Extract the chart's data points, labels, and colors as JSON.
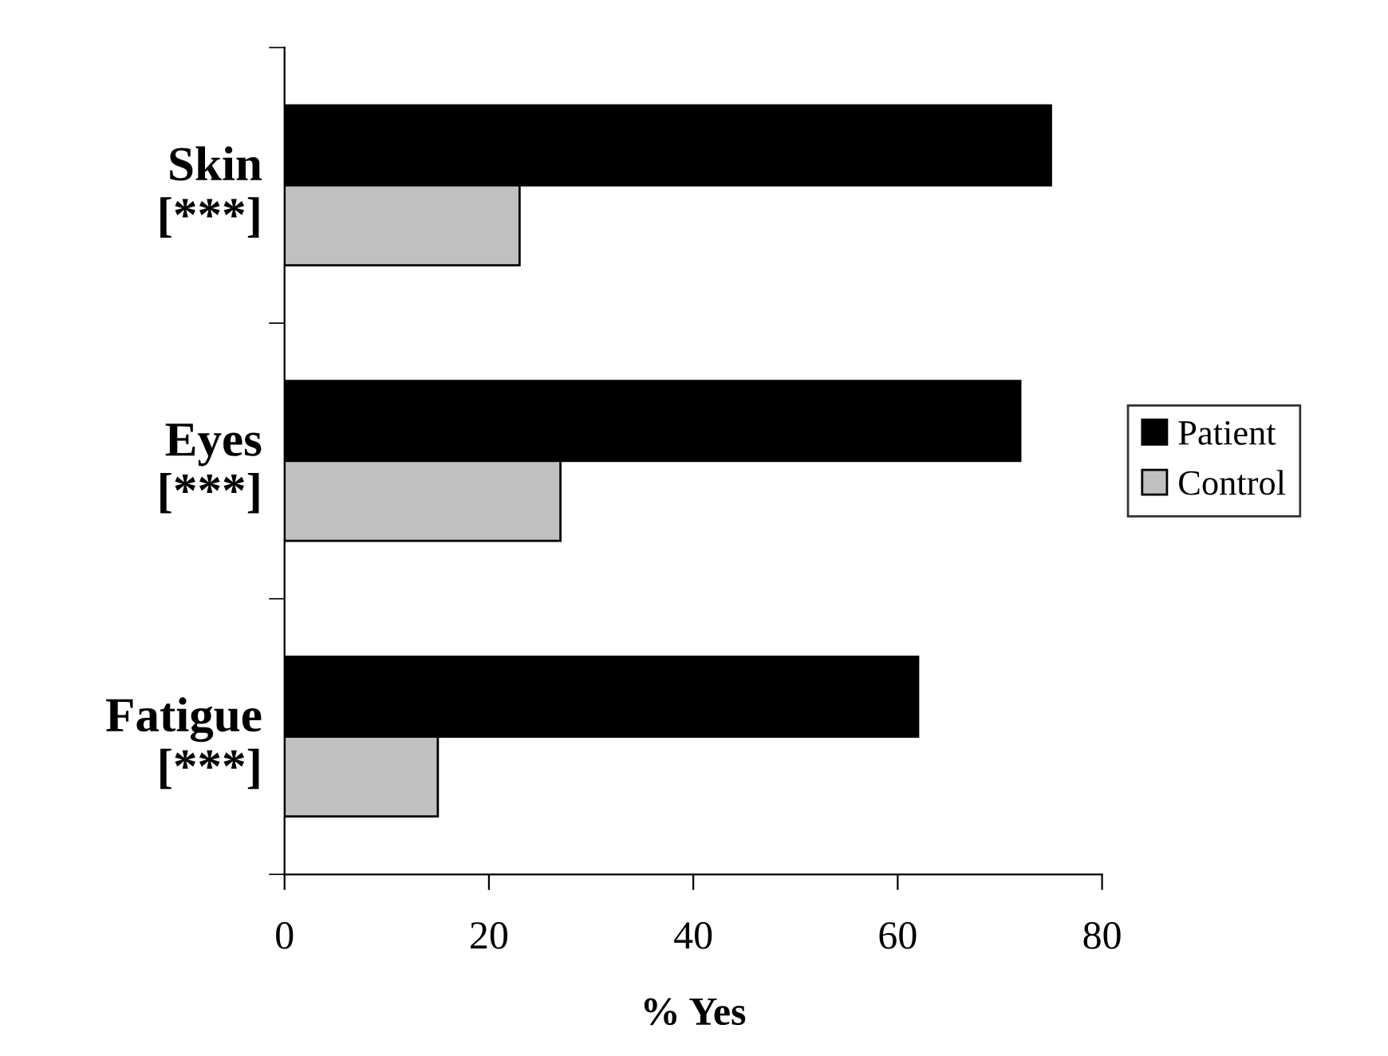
{
  "chart_data": {
    "type": "bar",
    "orientation": "horizontal",
    "categories": [
      "Skin\n[***]",
      "Eyes\n[***]",
      "Fatigue\n[***]"
    ],
    "series": [
      {
        "name": "Patient",
        "color": "#000000",
        "values": [
          75,
          72,
          62
        ]
      },
      {
        "name": "Control",
        "color": "#c0c0c0",
        "values": [
          23,
          27,
          15
        ]
      }
    ],
    "xlabel": "% Yes",
    "xlim": [
      0,
      80
    ],
    "xticks": [
      0,
      20,
      40,
      60,
      80
    ],
    "grid": false,
    "legend": "right"
  }
}
